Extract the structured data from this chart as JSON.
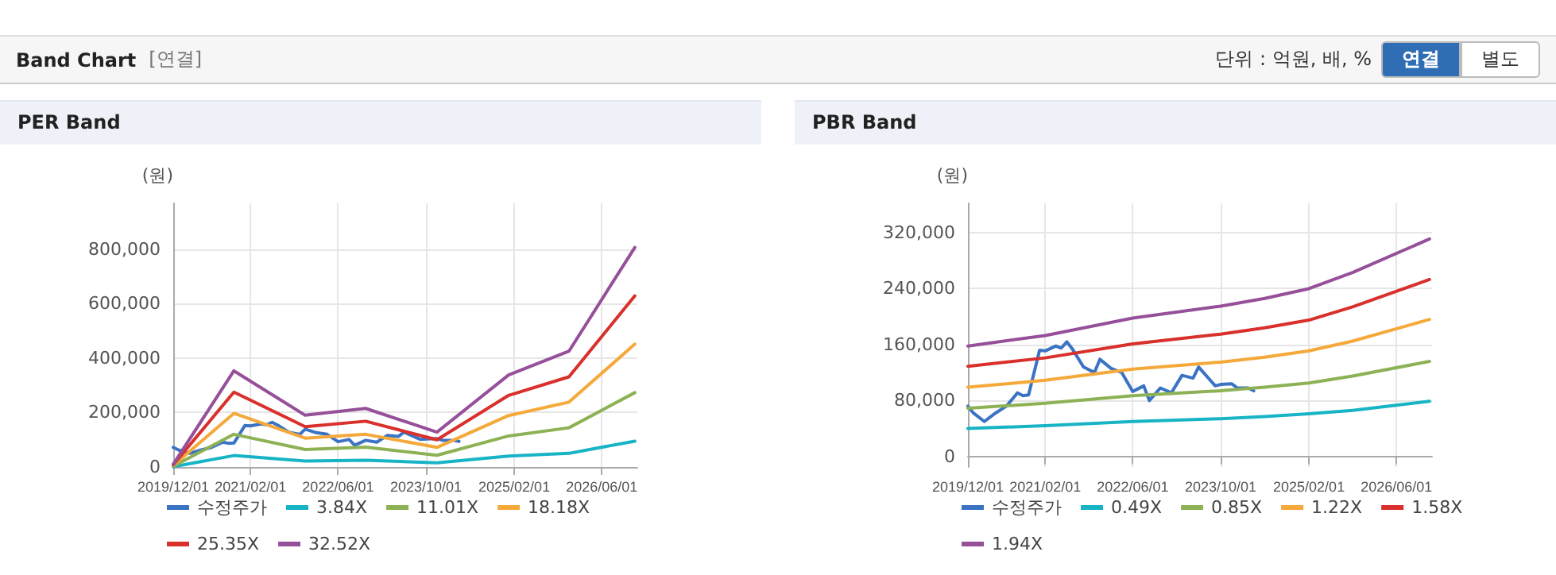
{
  "chart_data": [
    {
      "type": "other",
      "title": "Band Chart",
      "subtitle": "[연결]",
      "annotations": [
        "단위 : 억원, 배, %",
        "연결",
        "별도"
      ]
    },
    {
      "type": "line",
      "title": "PER Band",
      "ylabel": "(원)",
      "xlim": [
        "2019-12-01",
        "2026-12-15"
      ],
      "ylim": [
        0,
        968000
      ],
      "xticks": [
        {
          "value": "2019-12-01",
          "label": "2019/12/01"
        },
        {
          "value": "2021-02-01",
          "label": "2021/02/01"
        },
        {
          "value": "2022-06-01",
          "label": "2022/06/01"
        },
        {
          "value": "2023-10-01",
          "label": "2023/10/01"
        },
        {
          "value": "2025-02-01",
          "label": "2025/02/01"
        },
        {
          "value": "2026-06-01",
          "label": "2026/06/01"
        }
      ],
      "yticks": [
        0,
        {
          "value": 200000,
          "label": "200,000"
        },
        {
          "value": 400000,
          "label": "400,000"
        },
        {
          "value": 600000,
          "label": "600,000"
        },
        {
          "value": 800000,
          "label": "800,000"
        }
      ],
      "grid": true,
      "legend": "bottom",
      "marker": "none",
      "line_style": "solid",
      "series": [
        {
          "name": "수정주가",
          "color": "#3b73c4",
          "x": [
            "2019-12",
            "2020-01",
            "2020-03",
            "2020-05",
            "2020-07",
            "2020-09",
            "2020-10",
            "2020-11",
            "2021-01",
            "2021-02",
            "2021-04",
            "2021-05",
            "2021-06",
            "2021-07",
            "2021-09",
            "2021-11",
            "2021-12",
            "2022-02",
            "2022-04",
            "2022-06",
            "2022-08",
            "2022-09",
            "2022-11",
            "2023-01",
            "2023-03",
            "2023-05",
            "2023-06",
            "2023-09",
            "2023-10",
            "2023-12",
            "2024-01",
            "2024-03",
            "2024-04"
          ],
          "values": [
            72000,
            62000,
            50000,
            62000,
            72000,
            91000,
            87000,
            88000,
            152000,
            151000,
            158000,
            155000,
            164000,
            154000,
            128000,
            120000,
            139000,
            126000,
            120000,
            93000,
            101000,
            80000,
            98000,
            91000,
            116000,
            112000,
            128000,
            101000,
            103000,
            104000,
            98000,
            98000,
            94000
          ]
        },
        {
          "name": "3.84X",
          "color": "#17b4c6",
          "x": [
            "2019-12",
            "2020-11",
            "2021-12",
            "2022-11",
            "2023-12",
            "2025-01",
            "2025-12",
            "2026-12"
          ],
          "values": [
            1000,
            42000,
            22000,
            25000,
            15000,
            40000,
            50000,
            95000
          ]
        },
        {
          "name": "11.01X",
          "color": "#8db255",
          "x": [
            "2019-12",
            "2020-11",
            "2021-12",
            "2022-11",
            "2023-12",
            "2025-01",
            "2025-12",
            "2026-12"
          ],
          "values": [
            3000,
            120000,
            64000,
            73000,
            43000,
            114000,
            144000,
            273000
          ]
        },
        {
          "name": "18.18X",
          "color": "#f5a93a",
          "x": [
            "2019-12",
            "2020-11",
            "2021-12",
            "2022-11",
            "2023-12",
            "2025-01",
            "2025-12",
            "2026-12"
          ],
          "values": [
            6000,
            197000,
            106000,
            120000,
            72000,
            189000,
            238000,
            451000
          ]
        },
        {
          "name": "25.35X",
          "color": "#d9302c",
          "x": [
            "2019-12",
            "2020-11",
            "2021-12",
            "2022-11",
            "2023-12",
            "2025-01",
            "2025-12",
            "2026-12"
          ],
          "values": [
            8000,
            275000,
            148000,
            168000,
            100000,
            263000,
            331000,
            628000
          ]
        },
        {
          "name": "32.52X",
          "color": "#96509a",
          "x": [
            "2019-12",
            "2020-11",
            "2021-12",
            "2022-11",
            "2023-12",
            "2025-01",
            "2025-12",
            "2026-12"
          ],
          "values": [
            10000,
            353000,
            190000,
            215000,
            128000,
            338000,
            425000,
            806000
          ]
        }
      ]
    },
    {
      "type": "line",
      "title": "PBR Band",
      "ylabel": "(원)",
      "xlim": [
        "2019-12-01",
        "2026-12-15"
      ],
      "ylim": [
        -15000,
        362000
      ],
      "xticks": [
        {
          "value": "2019-12-01",
          "label": "2019/12/01"
        },
        {
          "value": "2021-02-01",
          "label": "2021/02/01"
        },
        {
          "value": "2022-06-01",
          "label": "2022/06/01"
        },
        {
          "value": "2023-10-01",
          "label": "2023/10/01"
        },
        {
          "value": "2025-02-01",
          "label": "2025/02/01"
        },
        {
          "value": "2026-06-01",
          "label": "2026/06/01"
        }
      ],
      "yticks": [
        0,
        {
          "value": 80000,
          "label": "80,000"
        },
        {
          "value": 160000,
          "label": "160,000"
        },
        {
          "value": 240000,
          "label": "240,000"
        },
        {
          "value": 320000,
          "label": "320,000"
        }
      ],
      "grid": true,
      "legend": "bottom",
      "marker": "none",
      "line_style": "solid",
      "series": [
        {
          "name": "수정주가",
          "color": "#3b73c4",
          "x": [
            "2019-12",
            "2020-01",
            "2020-03",
            "2020-05",
            "2020-07",
            "2020-09",
            "2020-10",
            "2020-11",
            "2021-01",
            "2021-02",
            "2021-04",
            "2021-05",
            "2021-06",
            "2021-07",
            "2021-09",
            "2021-11",
            "2021-12",
            "2022-02",
            "2022-04",
            "2022-06",
            "2022-08",
            "2022-09",
            "2022-11",
            "2023-01",
            "2023-03",
            "2023-05",
            "2023-06",
            "2023-09",
            "2023-10",
            "2023-12",
            "2024-01",
            "2024-03",
            "2024-04"
          ],
          "values": [
            72000,
            62000,
            50000,
            62000,
            72000,
            91000,
            87000,
            88000,
            152000,
            151000,
            158000,
            155000,
            164000,
            154000,
            128000,
            120000,
            139000,
            126000,
            120000,
            93000,
            101000,
            80000,
            98000,
            91000,
            116000,
            112000,
            128000,
            101000,
            103000,
            104000,
            98000,
            98000,
            94000
          ]
        },
        {
          "name": "0.49X",
          "color": "#17b4c6",
          "x": [
            "2019-12",
            "2021-02",
            "2022-06",
            "2023-10",
            "2024-06",
            "2025-02",
            "2025-10",
            "2026-12"
          ],
          "values": [
            40000,
            44000,
            50000,
            54000,
            57000,
            61000,
            66000,
            79000
          ]
        },
        {
          "name": "0.85X",
          "color": "#8db255",
          "x": [
            "2019-12",
            "2021-02",
            "2022-06",
            "2023-10",
            "2024-06",
            "2025-02",
            "2025-10",
            "2026-12"
          ],
          "values": [
            69000,
            76000,
            87000,
            94000,
            99000,
            105000,
            115000,
            136000
          ]
        },
        {
          "name": "1.22X",
          "color": "#f5a93a",
          "x": [
            "2019-12",
            "2021-02",
            "2022-06",
            "2023-10",
            "2024-06",
            "2025-02",
            "2025-10",
            "2026-12"
          ],
          "values": [
            99000,
            109000,
            125000,
            135000,
            142000,
            151000,
            165000,
            196000
          ]
        },
        {
          "name": "1.58X",
          "color": "#d9302c",
          "x": [
            "2019-12",
            "2021-02",
            "2022-06",
            "2023-10",
            "2024-06",
            "2025-02",
            "2025-10",
            "2026-12"
          ],
          "values": [
            129000,
            141000,
            161000,
            175000,
            184000,
            195000,
            214000,
            253000
          ]
        },
        {
          "name": "1.94X",
          "color": "#96509a",
          "x": [
            "2019-12",
            "2021-02",
            "2022-06",
            "2023-10",
            "2024-06",
            "2025-02",
            "2025-10",
            "2026-12"
          ],
          "values": [
            158000,
            173000,
            198000,
            215000,
            226000,
            240000,
            263000,
            311000
          ]
        }
      ]
    }
  ]
}
